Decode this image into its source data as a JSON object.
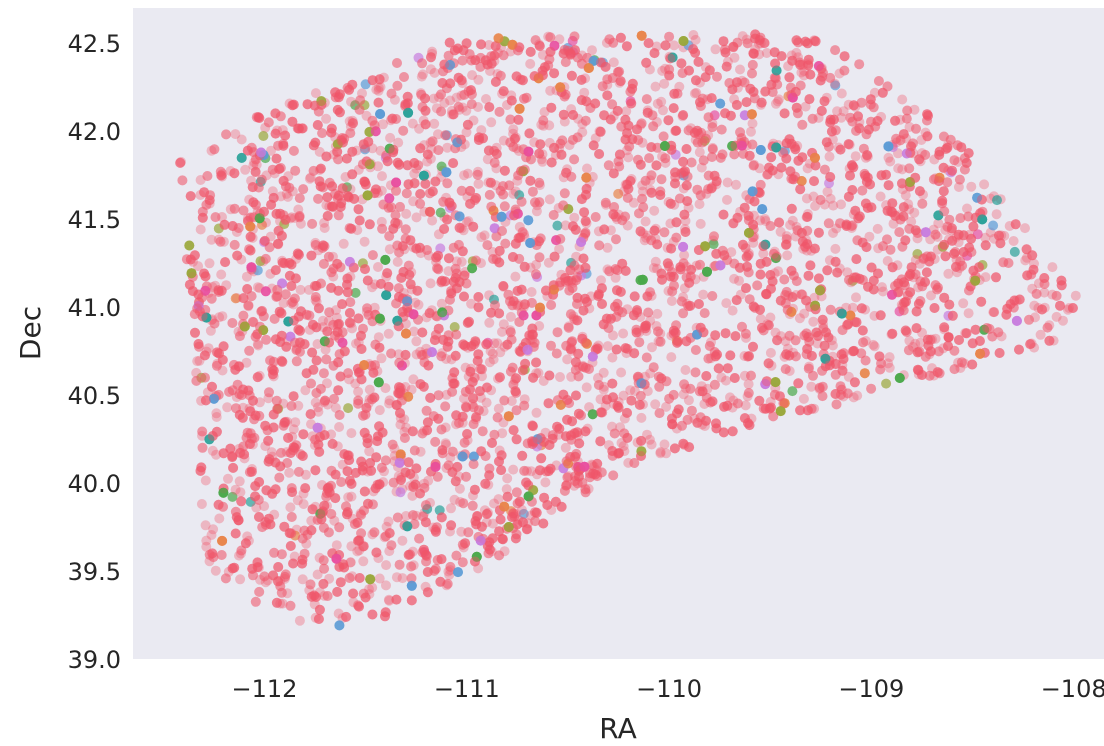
{
  "chart_data": {
    "type": "scatter",
    "title": "",
    "xlabel": "RA",
    "ylabel": "Dec",
    "xlim": [
      -112.65,
      -107.85
    ],
    "ylim": [
      39.0,
      42.7
    ],
    "xticks": [
      -112,
      -111,
      -110,
      -109,
      -108
    ],
    "xtick_labels": [
      "−112",
      "−111",
      "−110",
      "−109",
      "−108"
    ],
    "yticks": [
      39.0,
      39.5,
      40.0,
      40.5,
      41.0,
      41.5,
      42.0,
      42.5
    ],
    "ytick_labels": [
      "39.0",
      "39.5",
      "40.0",
      "40.5",
      "41.0",
      "41.5",
      "42.0",
      "42.5"
    ],
    "grid": false,
    "background_color": "#eaeaf2",
    "dominant_color": "#f0566a",
    "accent_colors": [
      "#4aa84a",
      "#2aa198",
      "#e8844a",
      "#c77dde",
      "#5b9bd5",
      "#e84fa0",
      "#9aa63a"
    ],
    "point_alpha": 0.35,
    "footprint_boundary": {
      "ra": [
        -112.42,
        -112.1,
        -111.8,
        -111.5,
        -111.35,
        -111.05,
        -110.3,
        -109.4,
        -109.2,
        -108.6,
        -108.2,
        -107.97,
        -108.1,
        -110.2,
        -110.95,
        -111.55,
        -111.75,
        -112.0,
        -112.3,
        -112.35,
        -112.42
      ],
      "dec": [
        41.85,
        42.05,
        42.2,
        42.3,
        42.42,
        42.52,
        42.55,
        42.55,
        42.5,
        42.0,
        41.4,
        41.05,
        40.8,
        40.1,
        39.5,
        39.15,
        39.18,
        39.28,
        39.55,
        40.7,
        41.85
      ]
    }
  }
}
